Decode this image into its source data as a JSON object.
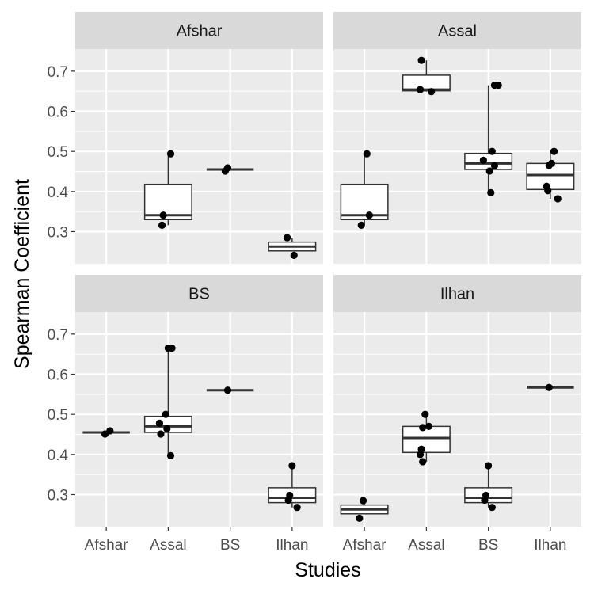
{
  "chart_data": {
    "type": "boxplot",
    "xlabel": "Studies",
    "ylabel": "Spearman Coefficient",
    "x_categories": [
      "Afshar",
      "Assal",
      "BS",
      "Ilhan"
    ],
    "y_ticks": [
      0.3,
      0.4,
      0.5,
      0.6,
      0.7
    ],
    "y_ticks_labels": [
      "0.3",
      "0.4",
      "0.5",
      "0.6",
      "0.7"
    ],
    "ylim": [
      0.22,
      0.755
    ],
    "grid": true,
    "colors": {
      "panel_bg": "#ebebeb",
      "strip_bg": "#d9d9d9",
      "grid": "#ffffff",
      "box_fill": "#ffffff",
      "box_line": "#333333",
      "point": "#000000"
    },
    "panels": [
      {
        "title": "Afshar",
        "groups": [
          {
            "category": "Afshar",
            "single": true,
            "median": 0.0,
            "hidden": true,
            "points": []
          },
          {
            "category": "Assal",
            "whisker_low": 0.316,
            "q1": 0.33,
            "median": 0.341,
            "q3": 0.418,
            "whisker_high": 0.494,
            "points": [
              {
                "x": 0.04,
                "y": 0.494
              },
              {
                "x": -0.08,
                "y": 0.341
              },
              {
                "x": -0.1,
                "y": 0.316
              }
            ]
          },
          {
            "category": "BS",
            "single": true,
            "median": 0.455,
            "points": [
              {
                "x": -0.08,
                "y": 0.451
              },
              {
                "x": -0.04,
                "y": 0.459
              }
            ]
          },
          {
            "category": "Ilhan",
            "whisker_low": 0.252,
            "q1": 0.252,
            "median": 0.263,
            "q3": 0.274,
            "whisker_high": 0.285,
            "points": [
              {
                "x": -0.08,
                "y": 0.285
              },
              {
                "x": 0.03,
                "y": 0.241
              }
            ]
          }
        ]
      },
      {
        "title": "Assal",
        "groups": [
          {
            "category": "Afshar",
            "whisker_low": 0.316,
            "q1": 0.33,
            "median": 0.341,
            "q3": 0.418,
            "whisker_high": 0.494,
            "points": [
              {
                "x": 0.04,
                "y": 0.494
              },
              {
                "x": 0.08,
                "y": 0.341
              },
              {
                "x": -0.05,
                "y": 0.316
              }
            ]
          },
          {
            "category": "Assal",
            "whisker_low": 0.649,
            "q1": 0.651,
            "median": 0.654,
            "q3": 0.69,
            "whisker_high": 0.727,
            "points": [
              {
                "x": -0.08,
                "y": 0.727
              },
              {
                "x": -0.1,
                "y": 0.654
              },
              {
                "x": 0.08,
                "y": 0.649
              }
            ]
          },
          {
            "category": "BS",
            "whisker_low": 0.397,
            "q1": 0.455,
            "median": 0.47,
            "q3": 0.495,
            "whisker_high": 0.665,
            "points": [
              {
                "x": 0.1,
                "y": 0.665
              },
              {
                "x": 0.16,
                "y": 0.665
              },
              {
                "x": 0.06,
                "y": 0.5
              },
              {
                "x": -0.08,
                "y": 0.478
              },
              {
                "x": 0.1,
                "y": 0.464
              },
              {
                "x": 0.02,
                "y": 0.451
              },
              {
                "x": 0.04,
                "y": 0.397
              }
            ]
          },
          {
            "category": "Ilhan",
            "whisker_low": 0.382,
            "q1": 0.405,
            "median": 0.441,
            "q3": 0.47,
            "whisker_high": 0.5,
            "points": [
              {
                "x": 0.06,
                "y": 0.5
              },
              {
                "x": 0.02,
                "y": 0.47
              },
              {
                "x": -0.02,
                "y": 0.465
              },
              {
                "x": -0.06,
                "y": 0.413
              },
              {
                "x": -0.04,
                "y": 0.402
              },
              {
                "x": 0.12,
                "y": 0.382
              }
            ]
          }
        ]
      },
      {
        "title": "BS",
        "groups": [
          {
            "category": "Afshar",
            "single": true,
            "median": 0.455,
            "points": [
              {
                "x": -0.02,
                "y": 0.451
              },
              {
                "x": 0.06,
                "y": 0.459
              }
            ]
          },
          {
            "category": "Assal",
            "whisker_low": 0.397,
            "q1": 0.455,
            "median": 0.47,
            "q3": 0.495,
            "whisker_high": 0.665,
            "points": [
              {
                "x": 0.0,
                "y": 0.665
              },
              {
                "x": 0.06,
                "y": 0.665
              },
              {
                "x": -0.04,
                "y": 0.5
              },
              {
                "x": -0.14,
                "y": 0.478
              },
              {
                "x": -0.02,
                "y": 0.464
              },
              {
                "x": -0.12,
                "y": 0.451
              },
              {
                "x": 0.04,
                "y": 0.397
              }
            ]
          },
          {
            "category": "BS",
            "single": true,
            "median": 0.56,
            "points": [
              {
                "x": -0.04,
                "y": 0.56
              }
            ]
          },
          {
            "category": "Ilhan",
            "whisker_low": 0.268,
            "q1": 0.28,
            "median": 0.292,
            "q3": 0.317,
            "whisker_high": 0.372,
            "points": [
              {
                "x": 0.0,
                "y": 0.372
              },
              {
                "x": -0.04,
                "y": 0.298
              },
              {
                "x": -0.06,
                "y": 0.286
              },
              {
                "x": 0.08,
                "y": 0.268
              }
            ]
          }
        ]
      },
      {
        "title": "Ilhan",
        "groups": [
          {
            "category": "Afshar",
            "whisker_low": 0.252,
            "q1": 0.252,
            "median": 0.263,
            "q3": 0.274,
            "whisker_high": 0.285,
            "points": [
              {
                "x": -0.02,
                "y": 0.285
              },
              {
                "x": -0.08,
                "y": 0.241
              }
            ]
          },
          {
            "category": "Assal",
            "whisker_low": 0.382,
            "q1": 0.405,
            "median": 0.441,
            "q3": 0.47,
            "whisker_high": 0.5,
            "points": [
              {
                "x": -0.02,
                "y": 0.5
              },
              {
                "x": 0.04,
                "y": 0.47
              },
              {
                "x": -0.06,
                "y": 0.467
              },
              {
                "x": -0.08,
                "y": 0.413
              },
              {
                "x": -0.1,
                "y": 0.4
              },
              {
                "x": -0.06,
                "y": 0.382
              }
            ]
          },
          {
            "category": "BS",
            "whisker_low": 0.268,
            "q1": 0.28,
            "median": 0.292,
            "q3": 0.317,
            "whisker_high": 0.372,
            "points": [
              {
                "x": 0.0,
                "y": 0.372
              },
              {
                "x": -0.04,
                "y": 0.298
              },
              {
                "x": -0.06,
                "y": 0.286
              },
              {
                "x": 0.06,
                "y": 0.268
              }
            ]
          },
          {
            "category": "Ilhan",
            "single": true,
            "median": 0.567,
            "points": [
              {
                "x": -0.02,
                "y": 0.567
              }
            ]
          }
        ]
      }
    ]
  }
}
